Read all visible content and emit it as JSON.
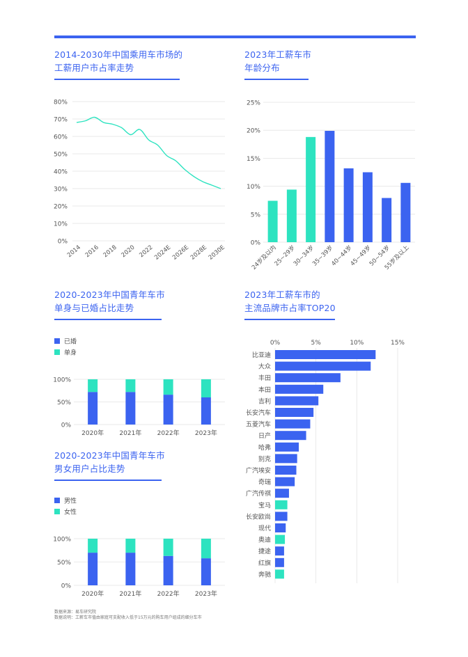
{
  "colors": {
    "accent": "#3b63f0",
    "teal": "#2de3c0",
    "grid": "#e3e3e3"
  },
  "panels": {
    "p1": {
      "title1": "2014-2030年中国乘用车市场的",
      "title2": "工薪用户市占率走势"
    },
    "p2": {
      "title1": "2023年工薪车市",
      "title2": "年龄分布"
    },
    "p3": {
      "title1": "2020-2023年中国青年车市",
      "title2": "单身与已婚占比走势"
    },
    "p4": {
      "title1": "2023年工薪车市的",
      "title2": "主流品牌市占率TOP20"
    },
    "p5": {
      "title1": "2020-2023年中国青年车市",
      "title2": "男女用户占比走势"
    }
  },
  "footer": {
    "source": "数据来源：易车研究院",
    "note": "数据说明：工薪车市值由家庭可支配收入低于15万元的购车用户组成的细分车市"
  },
  "chart_data": [
    {
      "id": "share_trend",
      "type": "line",
      "title": "2014-2030年中国乘用车市场的工薪用户市占率走势",
      "x": [
        2014,
        2015,
        2016,
        2017,
        2018,
        2019,
        2020,
        2021,
        2022,
        2023,
        2024,
        2025,
        2026,
        2027,
        2028,
        2029,
        2030
      ],
      "values": [
        68,
        69,
        71,
        68,
        67,
        65,
        61,
        64,
        58,
        55,
        49,
        46,
        41,
        37,
        34,
        32,
        30
      ],
      "xticks": [
        "2014",
        "2016",
        "2018",
        "2020",
        "2022",
        "2024E",
        "2026E",
        "2028E",
        "2030E"
      ],
      "yticks": [
        "0%",
        "10%",
        "20%",
        "30%",
        "40%",
        "50%",
        "60%",
        "70%",
        "80%"
      ],
      "ylim": [
        0,
        80
      ],
      "grid": true
    },
    {
      "id": "age_dist",
      "type": "bar",
      "title": "2023年工薪车市年龄分布",
      "categories": [
        "24岁及以内",
        "25~29岁",
        "30~34岁",
        "35~39岁",
        "40~44岁",
        "45~49岁",
        "50~54岁",
        "55岁及以上"
      ],
      "values": [
        7.4,
        9.4,
        18.8,
        19.9,
        13.2,
        12.5,
        7.9,
        10.6
      ],
      "colors": [
        "#2de3c0",
        "#2de3c0",
        "#2de3c0",
        "#3b63f0",
        "#3b63f0",
        "#3b63f0",
        "#3b63f0",
        "#3b63f0"
      ],
      "yticks": [
        "0%",
        "5%",
        "10%",
        "15%",
        "20%",
        "25%"
      ],
      "ylim": [
        0,
        25
      ],
      "grid": true
    },
    {
      "id": "marital",
      "type": "bar",
      "stacked": true,
      "title": "2020-2023年中国青年车市单身与已婚占比走势",
      "categories": [
        "2020年",
        "2021年",
        "2022年",
        "2023年"
      ],
      "series": [
        {
          "name": "已婚",
          "color": "#3b63f0",
          "values": [
            72,
            72,
            66,
            60
          ]
        },
        {
          "name": "单身",
          "color": "#2de3c0",
          "values": [
            28,
            28,
            34,
            40
          ]
        }
      ],
      "yticks": [
        "0%",
        "50%",
        "100%"
      ],
      "ylim": [
        0,
        100
      ],
      "legend": "top-left"
    },
    {
      "id": "gender",
      "type": "bar",
      "stacked": true,
      "title": "2020-2023年中国青年车市男女用户占比走势",
      "categories": [
        "2020年",
        "2021年",
        "2022年",
        "2023年"
      ],
      "series": [
        {
          "name": "男性",
          "color": "#3b63f0",
          "values": [
            70,
            70,
            63,
            58
          ]
        },
        {
          "name": "女性",
          "color": "#2de3c0",
          "values": [
            30,
            30,
            37,
            42
          ]
        }
      ],
      "yticks": [
        "0%",
        "50%",
        "100%"
      ],
      "ylim": [
        0,
        100
      ],
      "legend": "top-left"
    },
    {
      "id": "brands",
      "type": "bar",
      "orientation": "horizontal",
      "title": "2023年工薪车市的主流品牌市占率TOP20",
      "categories": [
        "比亚迪",
        "大众",
        "丰田",
        "本田",
        "吉利",
        "长安汽车",
        "五菱汽车",
        "日产",
        "哈弗",
        "别克",
        "广汽埃安",
        "奇瑞",
        "广汽传祺",
        "宝马",
        "长安欧尚",
        "现代",
        "奥迪",
        "捷途",
        "红旗",
        "奔驰"
      ],
      "values": [
        12.3,
        11.7,
        8.0,
        5.9,
        5.3,
        4.7,
        4.3,
        3.8,
        2.9,
        2.7,
        2.6,
        2.4,
        1.7,
        1.5,
        1.5,
        1.3,
        1.2,
        1.1,
        1.1,
        1.1
      ],
      "colors": [
        "#3b63f0",
        "#3b63f0",
        "#3b63f0",
        "#3b63f0",
        "#3b63f0",
        "#3b63f0",
        "#3b63f0",
        "#3b63f0",
        "#3b63f0",
        "#3b63f0",
        "#3b63f0",
        "#3b63f0",
        "#3b63f0",
        "#2de3c0",
        "#3b63f0",
        "#3b63f0",
        "#2de3c0",
        "#3b63f0",
        "#3b63f0",
        "#2de3c0"
      ],
      "xticks": [
        "0%",
        "5%",
        "10%",
        "15%"
      ],
      "xlim": [
        0,
        15
      ],
      "grid": true
    }
  ]
}
